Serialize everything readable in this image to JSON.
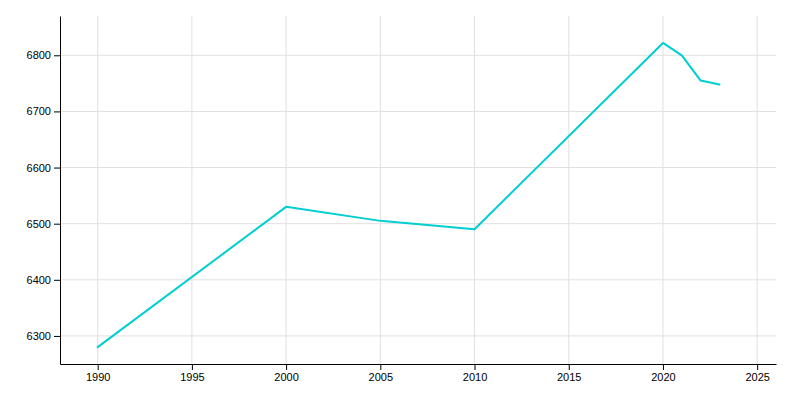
{
  "chart_data": {
    "type": "line",
    "x": [
      1990,
      2000,
      2005,
      2010,
      2020,
      2021,
      2022,
      2023
    ],
    "values": [
      6280,
      6530,
      6505,
      6490,
      6822,
      6800,
      6755,
      6748
    ],
    "color": "#00CED1",
    "xlim": [
      1988,
      2026
    ],
    "ylim": [
      6250,
      6870
    ],
    "xticks": [
      1990,
      1995,
      2000,
      2005,
      2010,
      2015,
      2020,
      2025
    ],
    "yticks": [
      6300,
      6400,
      6500,
      6600,
      6700,
      6800
    ],
    "grid": true
  }
}
